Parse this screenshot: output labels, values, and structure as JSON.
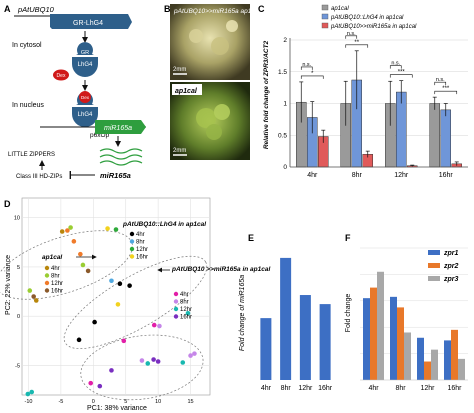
{
  "panels": {
    "A": {
      "letter": "A",
      "promoter": "pAtUBQ10",
      "gene_box": "GR-LhG4",
      "cytosol_label": "In cytosol",
      "gr_label": "GR",
      "lhg4_label": "LhG4",
      "dex_label": "Dex",
      "nucleus_label": "In nucleus",
      "p6xop_label": "p6xOp",
      "mir_box": "miR165a",
      "little_zippers": "LITTLE ZIPPERS",
      "hdzips": "Class III HD-ZIPs",
      "mir_text": "miR165a",
      "colors": {
        "box": "#2e5f8a",
        "dex": "#d01919",
        "mir": "#2e9e3e"
      }
    },
    "B": {
      "letter": "B",
      "top_label": "pAtUBQ10>>miR165a ap1cal",
      "bottom_label": "ap1cal",
      "scale_top": "2mm",
      "scale_bottom": "2mm"
    },
    "C": {
      "letter": "C",
      "ylabel": "Relative fold change of ZPR3/ACT2",
      "legend": [
        "ap1cal",
        "pAtUBQ10::LhG4 in ap1cal",
        "pAtUBQ10>>miR165a in ap1cal"
      ],
      "sig_labels": [
        "*",
        "n.s.",
        "**",
        "n.s.",
        "***",
        "n.s.",
        "***",
        "n.s."
      ],
      "colors": [
        "#9a9a9a",
        "#6f96d8",
        "#e05a5a"
      ]
    },
    "D": {
      "letter": "D",
      "xlabel": "PC1: 38% variance",
      "ylabel": "PC2: 22% variance",
      "xticks": [
        "-10",
        "-5",
        "0",
        "5",
        "10",
        "15"
      ],
      "yticks": [
        "10",
        "5",
        "0",
        "-5"
      ],
      "group_lhg4": "pAtUBQ10::LhG4 in ap1cal",
      "group_ap1": "ap1cal",
      "group_mir": "pAtUBQ10 >>miR165a in ap1cal",
      "legend_lhg4": [
        {
          "label": "4hr",
          "color": "#000000"
        },
        {
          "label": "8hr",
          "color": "#4fa8e0"
        },
        {
          "label": "12hr",
          "color": "#2eaa3a"
        },
        {
          "label": "16hr",
          "color": "#f2d21e"
        }
      ],
      "legend_ap1": [
        {
          "label": "4hr",
          "color": "#b8860b"
        },
        {
          "label": "8hr",
          "color": "#9acd32"
        },
        {
          "label": "12hr",
          "color": "#f07b2a"
        },
        {
          "label": "16hr",
          "color": "#8b5a2b"
        }
      ],
      "legend_mir": [
        {
          "label": "4hr",
          "color": "#e21fa8"
        },
        {
          "label": "8hr",
          "color": "#c586e8"
        },
        {
          "label": "12hr",
          "color": "#18b8b0"
        },
        {
          "label": "16hr",
          "color": "#7a2fc0"
        }
      ]
    },
    "E": {
      "letter": "E",
      "ylabel": "Fold change of miR165a"
    },
    "F": {
      "letter": "F",
      "ylabel": "Fold change",
      "legend": [
        "zpr1",
        "zpr2",
        "zpr3"
      ],
      "colors": [
        "#3d6fc4",
        "#e8782a",
        "#a8a8a8"
      ]
    }
  },
  "chart_data": [
    {
      "type": "bar",
      "panel": "C",
      "categories": [
        "4hr",
        "8hr",
        "12hr",
        "16hr"
      ],
      "series": [
        {
          "name": "ap1cal",
          "values": [
            1.02,
            1.0,
            1.0,
            1.0
          ],
          "errors": [
            0.32,
            0.35,
            0.35,
            0.1
          ]
        },
        {
          "name": "pAtUBQ10::LhG4 in ap1cal",
          "values": [
            0.78,
            1.37,
            1.18,
            0.9
          ],
          "errors": [
            0.25,
            0.46,
            0.18,
            0.1
          ]
        },
        {
          "name": "pAtUBQ10>>miR165a in ap1cal",
          "values": [
            0.48,
            0.2,
            0.02,
            0.05
          ],
          "errors": [
            0.1,
            0.05,
            0.01,
            0.03
          ]
        }
      ],
      "ylabel": "Relative fold change of ZPR3/ACT2",
      "ylim": [
        0,
        2
      ],
      "yticks": [
        0,
        0.5,
        1,
        1.5,
        2
      ],
      "legend_position": "top",
      "grid": true
    },
    {
      "type": "scatter",
      "panel": "D",
      "xlabel": "PC1: 38% variance",
      "ylabel": "PC2: 22% variance",
      "xlim": [
        -11,
        18
      ],
      "ylim": [
        -8,
        12
      ],
      "points": [
        {
          "x": -4.8,
          "y": 8.6,
          "group": "ap1cal",
          "time": "4hr"
        },
        {
          "x": -4.0,
          "y": 8.7,
          "group": "ap1cal",
          "time": "12hr"
        },
        {
          "x": -3.5,
          "y": 9.0,
          "group": "ap1cal",
          "time": "8hr"
        },
        {
          "x": -3.0,
          "y": 7.6,
          "group": "ap1cal",
          "time": "12hr"
        },
        {
          "x": -2.0,
          "y": 6.3,
          "group": "ap1cal",
          "time": "12hr"
        },
        {
          "x": -1.6,
          "y": 5.2,
          "group": "ap1cal",
          "time": "8hr"
        },
        {
          "x": -0.8,
          "y": 4.6,
          "group": "ap1cal",
          "time": "16hr"
        },
        {
          "x": -9.8,
          "y": 2.6,
          "group": "ap1cal",
          "time": "8hr"
        },
        {
          "x": -9.2,
          "y": 2.0,
          "group": "ap1cal",
          "time": "16hr"
        },
        {
          "x": -8.8,
          "y": 1.6,
          "group": "ap1cal",
          "time": "4hr"
        },
        {
          "x": 2.2,
          "y": 8.9,
          "group": "pAtUBQ10::LhG4 in ap1cal",
          "time": "16hr"
        },
        {
          "x": 3.5,
          "y": 8.8,
          "group": "pAtUBQ10::LhG4 in ap1cal",
          "time": "12hr"
        },
        {
          "x": 4.1,
          "y": 3.3,
          "group": "pAtUBQ10::LhG4 in ap1cal",
          "time": "4hr"
        },
        {
          "x": 2.8,
          "y": 3.6,
          "group": "pAtUBQ10::LhG4 in ap1cal",
          "time": "8hr"
        },
        {
          "x": 5.6,
          "y": 3.1,
          "group": "pAtUBQ10::LhG4 in ap1cal",
          "time": "4hr"
        },
        {
          "x": 3.8,
          "y": 1.2,
          "group": "pAtUBQ10::LhG4 in ap1cal",
          "time": "16hr"
        },
        {
          "x": -2.2,
          "y": -2.4,
          "group": "pAtUBQ10::LhG4 in ap1cal",
          "time": "4hr"
        },
        {
          "x": 0.2,
          "y": -0.6,
          "group": "pAtUBQ10::LhG4 in ap1cal",
          "time": "4hr"
        },
        {
          "x": 14.6,
          "y": 0.3,
          "group": "pAtUBQ10 >>miR165a in ap1cal",
          "time": "12hr"
        },
        {
          "x": 9.4,
          "y": -0.9,
          "group": "pAtUBQ10 >>miR165a in ap1cal",
          "time": "4hr"
        },
        {
          "x": 10.2,
          "y": -1.0,
          "group": "pAtUBQ10 >>miR165a in ap1cal",
          "time": "8hr"
        },
        {
          "x": 4.7,
          "y": -2.5,
          "group": "pAtUBQ10 >>miR165a in ap1cal",
          "time": "4hr"
        },
        {
          "x": 7.5,
          "y": -4.5,
          "group": "pAtUBQ10 >>miR165a in ap1cal",
          "time": "8hr"
        },
        {
          "x": 8.4,
          "y": -4.8,
          "group": "pAtUBQ10 >>miR165a in ap1cal",
          "time": "12hr"
        },
        {
          "x": 9.3,
          "y": -4.4,
          "group": "pAtUBQ10 >>miR165a in ap1cal",
          "time": "16hr"
        },
        {
          "x": 10.0,
          "y": -4.6,
          "group": "pAtUBQ10 >>miR165a in ap1cal",
          "time": "16hr"
        },
        {
          "x": 13.8,
          "y": -4.7,
          "group": "pAtUBQ10 >>miR165a in ap1cal",
          "time": "12hr"
        },
        {
          "x": 15.0,
          "y": -4.0,
          "group": "pAtUBQ10 >>miR165a in ap1cal",
          "time": "8hr"
        },
        {
          "x": 15.6,
          "y": -3.8,
          "group": "pAtUBQ10 >>miR165a in ap1cal",
          "time": "8hr"
        },
        {
          "x": 2.8,
          "y": -5.5,
          "group": "pAtUBQ10 >>miR165a in ap1cal",
          "time": "16hr"
        },
        {
          "x": -0.4,
          "y": -6.8,
          "group": "pAtUBQ10 >>miR165a in ap1cal",
          "time": "4hr"
        },
        {
          "x": 1.0,
          "y": -7.1,
          "group": "pAtUBQ10 >>miR165a in ap1cal",
          "time": "16hr"
        },
        {
          "x": -9.5,
          "y": -7.7,
          "group": "pAtUBQ10 >>miR165a in ap1cal",
          "time": "12hr"
        },
        {
          "x": -10.1,
          "y": -7.9,
          "group": "pAtUBQ10 >>miR165a in ap1cal",
          "time": "12hr"
        }
      ]
    },
    {
      "type": "bar",
      "panel": "E",
      "categories": [
        "4hr",
        "8hr",
        "12hr",
        "16hr"
      ],
      "values": [
        7.5,
        14.8,
        10.3,
        9.2
      ],
      "ylabel": "Fold change of miR165a",
      "ylim": [
        0,
        16
      ]
    },
    {
      "type": "bar",
      "panel": "F",
      "categories": [
        "4hr",
        "8hr",
        "12hr",
        "16hr"
      ],
      "series": [
        {
          "name": "zpr1",
          "values": [
            0.62,
            0.63,
            0.32,
            0.3
          ]
        },
        {
          "name": "zpr2",
          "values": [
            0.7,
            0.55,
            0.14,
            0.38
          ]
        },
        {
          "name": "zpr3",
          "values": [
            0.82,
            0.36,
            0.23,
            0.16
          ]
        }
      ],
      "ylabel": "Fold change",
      "ylim": [
        0,
        1
      ],
      "legend_position": "top-right"
    }
  ]
}
